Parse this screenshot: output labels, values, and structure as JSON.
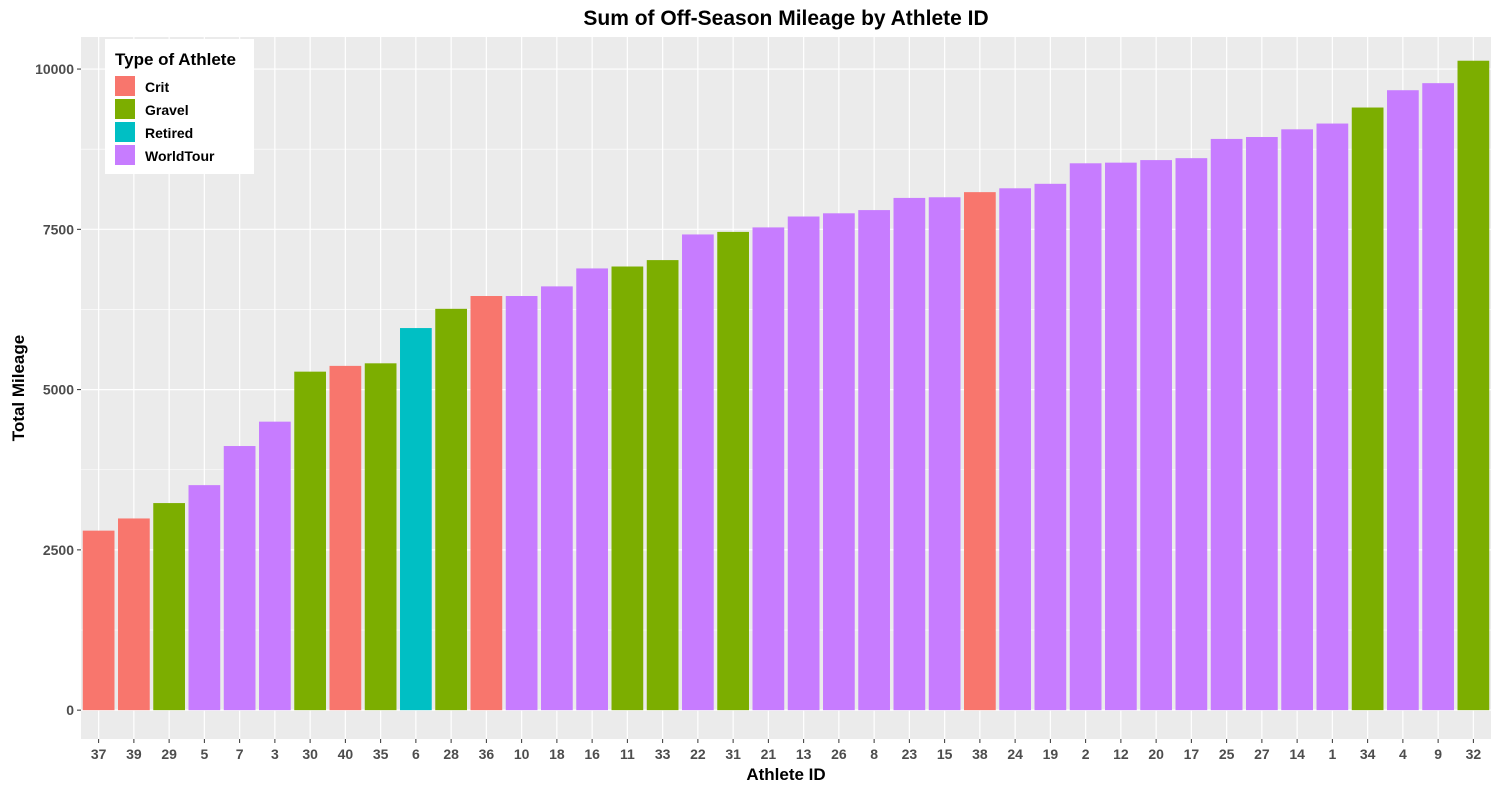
{
  "chart_data": {
    "type": "bar",
    "title": "Sum of Off-Season Mileage by Athlete ID",
    "xlabel": "Athlete ID",
    "ylabel": "Total Mileage",
    "ylim": [
      -450,
      10500
    ],
    "yticks": [
      0,
      2500,
      5000,
      7500,
      10000
    ],
    "grid": true,
    "legend": {
      "title": "Type of Athlete",
      "placement": "top-left",
      "entries": [
        {
          "label": "Crit",
          "color": "#F8766D"
        },
        {
          "label": "Gravel",
          "color": "#7CAE00"
        },
        {
          "label": "Retired",
          "color": "#00BFC4"
        },
        {
          "label": "WorldTour",
          "color": "#C77CFF"
        }
      ]
    },
    "categories": [
      "37",
      "39",
      "29",
      "5",
      "7",
      "3",
      "30",
      "40",
      "35",
      "6",
      "28",
      "36",
      "10",
      "18",
      "16",
      "11",
      "33",
      "22",
      "31",
      "21",
      "13",
      "26",
      "8",
      "23",
      "15",
      "38",
      "24",
      "19",
      "2",
      "12",
      "20",
      "17",
      "25",
      "27",
      "14",
      "1",
      "34",
      "4",
      "9",
      "32"
    ],
    "values": [
      2800,
      2990,
      3230,
      3510,
      4120,
      4500,
      5280,
      5370,
      5410,
      5960,
      6260,
      6460,
      6460,
      6610,
      6890,
      6920,
      7020,
      7420,
      7460,
      7530,
      7700,
      7750,
      7800,
      7990,
      8000,
      8080,
      8140,
      8210,
      8530,
      8540,
      8580,
      8610,
      8910,
      8940,
      9060,
      9150,
      9400,
      9670,
      9780,
      10130
    ],
    "athlete_types": [
      "Crit",
      "Crit",
      "Gravel",
      "WorldTour",
      "WorldTour",
      "WorldTour",
      "Gravel",
      "Crit",
      "Gravel",
      "Retired",
      "Gravel",
      "Crit",
      "WorldTour",
      "WorldTour",
      "WorldTour",
      "Gravel",
      "Gravel",
      "WorldTour",
      "Gravel",
      "WorldTour",
      "WorldTour",
      "WorldTour",
      "WorldTour",
      "WorldTour",
      "WorldTour",
      "Crit",
      "WorldTour",
      "WorldTour",
      "WorldTour",
      "WorldTour",
      "WorldTour",
      "WorldTour",
      "WorldTour",
      "WorldTour",
      "WorldTour",
      "WorldTour",
      "Gravel",
      "WorldTour",
      "WorldTour",
      "Gravel"
    ]
  },
  "colors": {
    "panel_background": "#EBEBEB",
    "grid_major": "#FFFFFF",
    "Crit": "#F8766D",
    "Gravel": "#7CAE00",
    "Retired": "#00BFC4",
    "WorldTour": "#C77CFF"
  }
}
